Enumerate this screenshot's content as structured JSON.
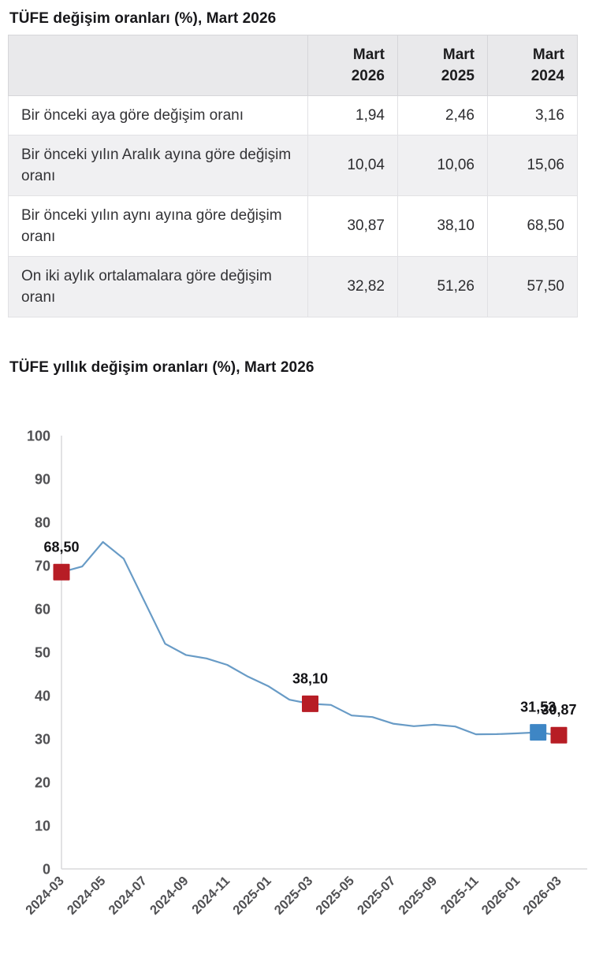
{
  "table_section": {
    "title": "TÜFE değişim oranları (%), Mart 2026",
    "table": {
      "column_headers": [
        "",
        "Mart 2026",
        "Mart 2025",
        "Mart 2024"
      ],
      "rows": [
        {
          "label": "Bir önceki aya göre değişim oranı",
          "values": [
            "1,94",
            "2,46",
            "3,16"
          ]
        },
        {
          "label": "Bir önceki yılın Aralık ayına göre değişim oranı",
          "values": [
            "10,04",
            "10,06",
            "15,06"
          ]
        },
        {
          "label": "Bir önceki yılın aynı ayına göre değişim oranı",
          "values": [
            "30,87",
            "38,10",
            "68,50"
          ]
        },
        {
          "label": "On iki aylık ortalamalara göre değişim oranı",
          "values": [
            "32,82",
            "51,26",
            "57,50"
          ]
        }
      ]
    }
  },
  "chart_section": {
    "title": "TÜFE yıllık değişim oranları (%), Mart 2026"
  },
  "chart_data": {
    "type": "line",
    "title": "TÜFE yıllık değişim oranları (%), Mart 2026",
    "x": [
      "2024-03",
      "2024-04",
      "2024-05",
      "2024-06",
      "2024-07",
      "2024-08",
      "2024-09",
      "2024-10",
      "2024-11",
      "2024-12",
      "2025-01",
      "2025-02",
      "2025-03",
      "2025-04",
      "2025-05",
      "2025-06",
      "2025-07",
      "2025-08",
      "2025-09",
      "2025-10",
      "2025-11",
      "2025-12",
      "2026-01",
      "2026-02",
      "2026-03"
    ],
    "values": [
      68.5,
      69.8,
      75.45,
      71.6,
      61.78,
      51.97,
      49.38,
      48.58,
      47.09,
      44.38,
      42.12,
      39.05,
      38.1,
      37.86,
      35.41,
      35.05,
      33.52,
      32.95,
      33.29,
      32.87,
      31.07,
      31.1,
      31.3,
      31.53,
      30.87
    ],
    "xtick_labels": [
      "2024-03",
      "2024-05",
      "2024-07",
      "2024-09",
      "2024-11",
      "2025-01",
      "2025-03",
      "2025-05",
      "2025-07",
      "2025-09",
      "2025-11",
      "2026-01",
      "2026-03"
    ],
    "ylim": [
      0,
      100
    ],
    "ytick_step": 10,
    "grid": false,
    "legend": "none",
    "line_color": "#689bc6",
    "markers": [
      {
        "category": "2024-03",
        "value": 68.5,
        "label": "68,50",
        "color": "#b71d25"
      },
      {
        "category": "2025-03",
        "value": 38.1,
        "label": "38,10",
        "color": "#b71d25"
      },
      {
        "category": "2026-02",
        "value": 31.53,
        "label": "31,53",
        "color": "#3e86c5"
      },
      {
        "category": "2026-03",
        "value": 30.87,
        "label": "30,87",
        "color": "#b71d25"
      }
    ]
  }
}
